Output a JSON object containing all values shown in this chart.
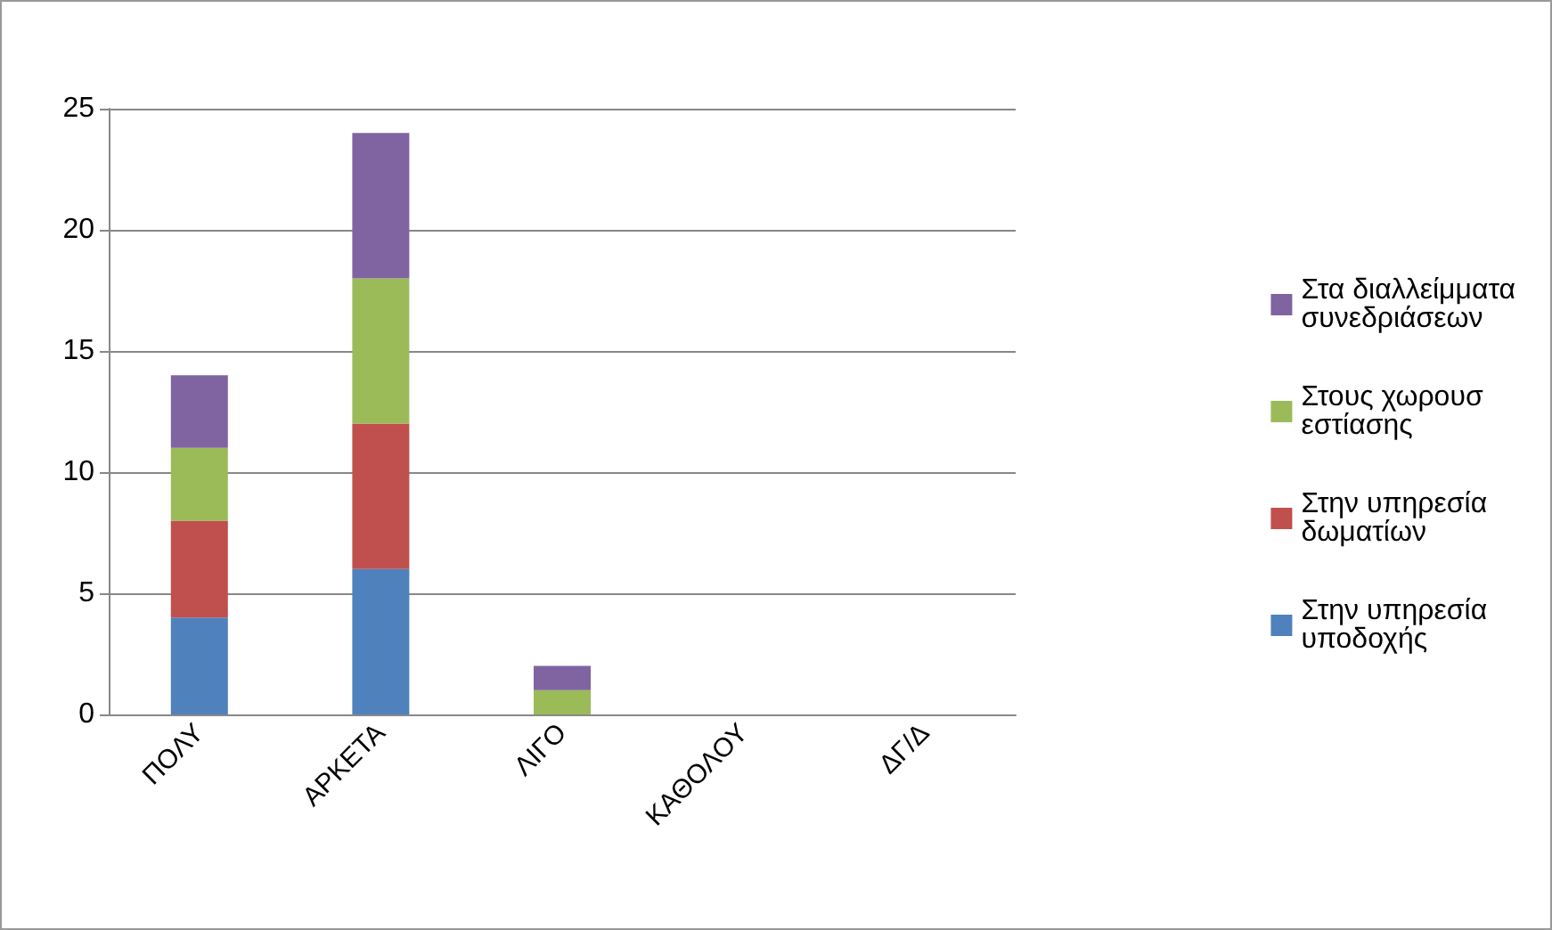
{
  "chart_data": {
    "type": "bar",
    "stacked": true,
    "categories": [
      "ΠΟΛΥ",
      "ΑΡΚΕΤΑ",
      "ΛΙΓΟ",
      "ΚΑΘΟΛΟΥ",
      "ΔΓ/Δ"
    ],
    "series": [
      {
        "name": "Στην υπηρεσία υποδοχής",
        "color": "#4f81bd",
        "values": [
          4,
          6,
          0,
          0,
          0
        ]
      },
      {
        "name": "Στην υπηρεσία δωματίων",
        "color": "#c0504d",
        "values": [
          4,
          6,
          0,
          0,
          0
        ]
      },
      {
        "name": "Στους χωρουσ εστίασης",
        "color": "#9bbb59",
        "values": [
          3,
          6,
          1,
          0,
          0
        ]
      },
      {
        "name": "Στα διαλλείμματα συνεδριάσεων",
        "color": "#8064a2",
        "values": [
          3,
          6,
          1,
          0,
          0
        ]
      }
    ],
    "ylim": [
      0,
      25
    ],
    "yticks": [
      0,
      5,
      10,
      15,
      20,
      25
    ],
    "grid": "y",
    "legend": "right"
  }
}
